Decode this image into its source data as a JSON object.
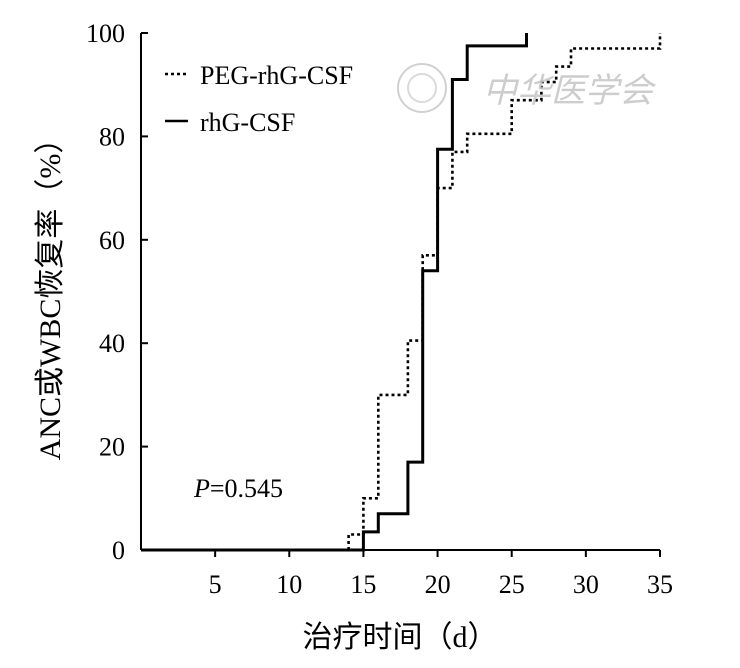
{
  "chart_data": {
    "type": "line",
    "step": true,
    "xlabel": "治疗时间（d）",
    "ylabel": "ANC或WBC恢复率（%）",
    "xlim": [
      0,
      35
    ],
    "ylim": [
      0,
      100
    ],
    "x_ticks": [
      5,
      10,
      15,
      20,
      25,
      30,
      35
    ],
    "y_ticks": [
      0,
      20,
      40,
      60,
      80,
      100
    ],
    "grid": false,
    "legend_position": "top-left",
    "annotation": {
      "label": "P",
      "value": "=0.545"
    },
    "series": [
      {
        "name": "PEG-rhG-CSF",
        "style": "dotted",
        "points": [
          [
            14,
            0
          ],
          [
            14,
            3
          ],
          [
            15,
            3
          ],
          [
            15,
            10
          ],
          [
            16,
            10
          ],
          [
            16,
            30
          ],
          [
            18,
            30
          ],
          [
            18,
            40.5
          ],
          [
            19,
            40.5
          ],
          [
            19,
            57
          ],
          [
            20,
            57
          ],
          [
            20,
            70
          ],
          [
            21,
            70
          ],
          [
            21,
            77
          ],
          [
            22,
            77
          ],
          [
            22,
            80.5
          ],
          [
            25,
            80.5
          ],
          [
            25,
            87
          ],
          [
            27,
            87
          ],
          [
            27,
            90.5
          ],
          [
            28,
            90.5
          ],
          [
            28,
            93.5
          ],
          [
            29,
            93.5
          ],
          [
            29,
            97
          ],
          [
            35,
            97
          ],
          [
            35,
            100
          ]
        ]
      },
      {
        "name": "rhG-CSF",
        "style": "solid",
        "points": [
          [
            0,
            0
          ],
          [
            15,
            0
          ],
          [
            15,
            3.5
          ],
          [
            16,
            3.5
          ],
          [
            16,
            7
          ],
          [
            18,
            7
          ],
          [
            18,
            17
          ],
          [
            19,
            17
          ],
          [
            19,
            54
          ],
          [
            20,
            54
          ],
          [
            20,
            77.5
          ],
          [
            21,
            77.5
          ],
          [
            21,
            91
          ],
          [
            22,
            91
          ],
          [
            22,
            97.5
          ],
          [
            26,
            97.5
          ],
          [
            26,
            100
          ]
        ]
      }
    ]
  },
  "watermark": "中华医学会"
}
